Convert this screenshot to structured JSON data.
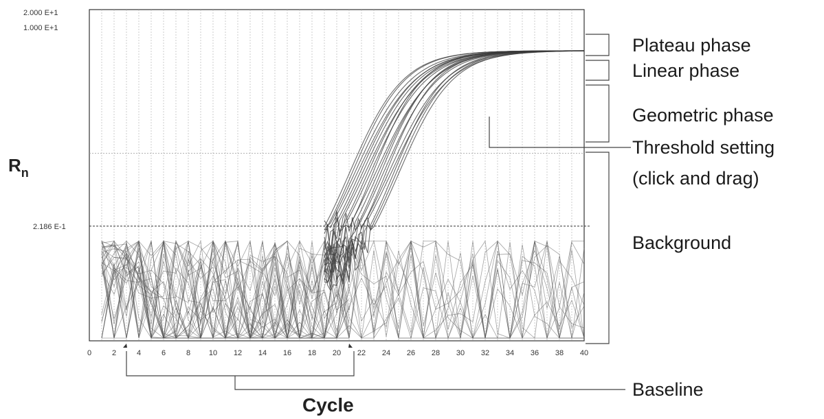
{
  "chart_data": {
    "type": "line",
    "ylabel_main": "R",
    "ylabel_sub": "n",
    "xlabel": "Cycle",
    "x_ticks": [
      "0",
      "2",
      "4",
      "6",
      "8",
      "10",
      "12",
      "14",
      "16",
      "18",
      "20",
      "22",
      "24",
      "26",
      "28",
      "30",
      "32",
      "34",
      "36",
      "38",
      "40"
    ],
    "y_tick_labels": [
      "2.000 E+1",
      "1.000 E+1"
    ],
    "threshold_label": "2.186 E-1",
    "xlim": [
      0,
      40
    ],
    "y_scale": "log",
    "ylim": [
      0.02,
      20
    ],
    "threshold_value": 0.2186,
    "grid": true,
    "baseline_range": [
      3,
      21
    ],
    "amplification_curves": {
      "count": 20,
      "plateau": 8.5,
      "midpoint_cycles_range": [
        21,
        25
      ],
      "description_values": [
        0.05,
        0.2186,
        1.0,
        8.5
      ]
    },
    "background_noise_level": 0.05,
    "annotations": [
      {
        "name": "plateau",
        "label": "Plateau phase"
      },
      {
        "name": "linear",
        "label": "Linear phase"
      },
      {
        "name": "geometric",
        "label": "Geometric phase"
      },
      {
        "name": "threshold1",
        "label": "Threshold setting"
      },
      {
        "name": "threshold2",
        "label": "(click and drag)"
      },
      {
        "name": "background",
        "label": "Background"
      },
      {
        "name": "baseline",
        "label": "Baseline"
      }
    ]
  }
}
